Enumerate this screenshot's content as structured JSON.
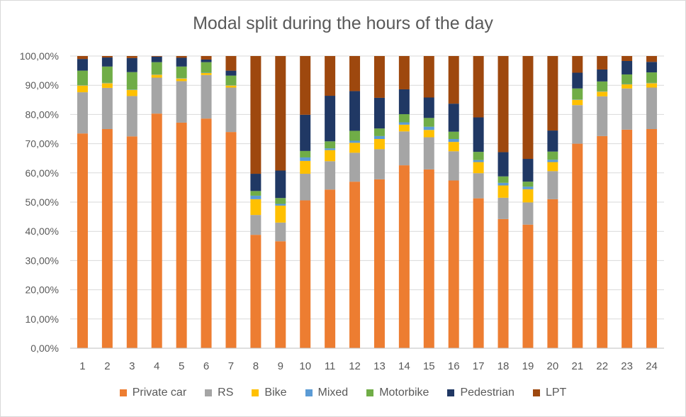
{
  "chart_data": {
    "type": "bar",
    "stacked": true,
    "title": "Modal split during the hours of the day",
    "xlabel": "",
    "ylabel": "",
    "ylim": [
      0,
      100
    ],
    "ytick_values": [
      0,
      10,
      20,
      30,
      40,
      50,
      60,
      70,
      80,
      90,
      100
    ],
    "ytick_labels": [
      "0,00%",
      "10,00%",
      "20,00%",
      "30,00%",
      "40,00%",
      "50,00%",
      "60,00%",
      "70,00%",
      "80,00%",
      "90,00%",
      "100,00%"
    ],
    "grid": true,
    "legend_position": "bottom",
    "categories": [
      "1",
      "2",
      "3",
      "4",
      "5",
      "6",
      "7",
      "8",
      "9",
      "10",
      "11",
      "12",
      "13",
      "14",
      "15",
      "16",
      "17",
      "18",
      "19",
      "20",
      "21",
      "22",
      "23",
      "24"
    ],
    "series": [
      {
        "name": "Private car",
        "color": "#ed7d31",
        "values": [
          73.5,
          75.0,
          72.5,
          80.3,
          77.2,
          78.6,
          74.0,
          38.8,
          36.6,
          50.6,
          54.3,
          57.0,
          57.8,
          62.6,
          61.2,
          57.4,
          51.3,
          44.2,
          42.3,
          51.0,
          70.0,
          72.6,
          74.8,
          75.0
        ]
      },
      {
        "name": "RS",
        "color": "#a5a5a5",
        "values": [
          14.1,
          14.1,
          13.8,
          12.3,
          14.2,
          14.9,
          15.2,
          6.8,
          6.4,
          9.1,
          9.7,
          9.9,
          10.3,
          11.6,
          11.0,
          10.0,
          8.6,
          7.3,
          7.6,
          9.6,
          13.2,
          13.6,
          14.1,
          14.2
        ]
      },
      {
        "name": "Bike",
        "color": "#ffc000",
        "values": [
          2.3,
          1.6,
          2.1,
          1.0,
          0.9,
          0.7,
          0.7,
          5.4,
          5.8,
          4.4,
          3.8,
          3.4,
          3.5,
          2.3,
          2.5,
          3.2,
          3.8,
          4.2,
          4.5,
          3.1,
          1.8,
          1.6,
          1.4,
          1.5
        ]
      },
      {
        "name": "Mixed",
        "color": "#5b9bd5",
        "values": [
          0.1,
          0.1,
          0.1,
          0.1,
          0.1,
          0.1,
          0.1,
          1.2,
          0.6,
          1.2,
          0.6,
          0.7,
          1.0,
          0.8,
          1.1,
          1.0,
          0.7,
          0.9,
          0.9,
          0.8,
          0.1,
          0.1,
          0.1,
          0.1
        ]
      },
      {
        "name": "Motorbike",
        "color": "#70ad47",
        "values": [
          5.0,
          5.6,
          6.0,
          4.2,
          4.0,
          3.6,
          3.3,
          1.6,
          2.0,
          2.2,
          2.4,
          3.4,
          2.6,
          2.8,
          3.0,
          2.5,
          2.8,
          2.2,
          1.7,
          2.8,
          3.8,
          3.4,
          3.3,
          3.6
        ]
      },
      {
        "name": "Pedestrian",
        "color": "#203864",
        "values": [
          4.0,
          3.1,
          4.8,
          1.9,
          3.0,
          0.9,
          1.7,
          5.9,
          9.4,
          12.4,
          15.6,
          13.6,
          10.5,
          8.5,
          7.0,
          9.6,
          11.8,
          8.3,
          7.8,
          7.2,
          5.4,
          4.1,
          4.6,
          3.6
        ]
      },
      {
        "name": "LPT",
        "color": "#9e480e",
        "values": [
          1.0,
          0.5,
          0.7,
          0.2,
          0.6,
          1.2,
          5.0,
          40.3,
          39.2,
          20.1,
          13.6,
          12.0,
          14.3,
          11.4,
          14.2,
          16.3,
          21.0,
          32.9,
          35.2,
          25.5,
          5.7,
          4.6,
          1.7,
          2.0
        ]
      }
    ]
  }
}
